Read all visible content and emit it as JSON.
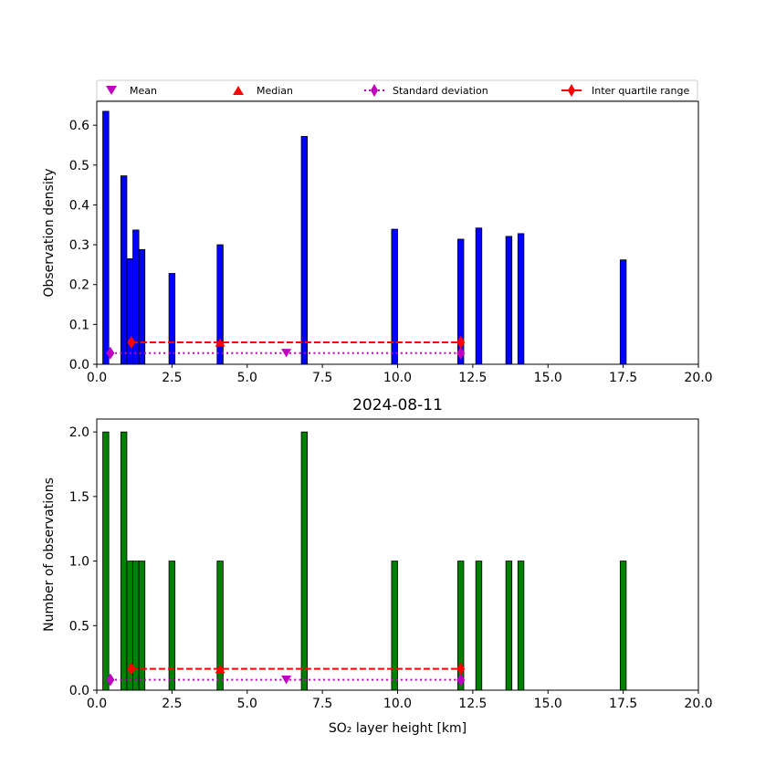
{
  "colors": {
    "top_bars": "#0000ff",
    "bottom_bars": "#008000",
    "mean": "#c000c0",
    "median": "#ff0000",
    "std": "#c000c0",
    "iqr": "#ff0000"
  },
  "legend": {
    "mean": "Mean",
    "median": "Median",
    "std": "Standard deviation",
    "iqr": "Inter quartile range"
  },
  "chart_data": [
    {
      "type": "bar",
      "title": "",
      "xlabel": "",
      "ylabel": "Observation density",
      "xlim": [
        0,
        20
      ],
      "ylim": [
        0,
        0.66
      ],
      "xticks": [
        "0.0",
        "2.5",
        "5.0",
        "7.5",
        "10.0",
        "12.5",
        "15.0",
        "17.5",
        "20.0"
      ],
      "yticks": [
        "0.0",
        "0.1",
        "0.2",
        "0.3",
        "0.4",
        "0.5",
        "0.6"
      ],
      "bins": [
        {
          "x0": 0.2,
          "x1": 0.4,
          "value": 0.635
        },
        {
          "x0": 0.8,
          "x1": 1.0,
          "value": 0.473
        },
        {
          "x0": 1.0,
          "x1": 1.2,
          "value": 0.265
        },
        {
          "x0": 1.2,
          "x1": 1.4,
          "value": 0.337
        },
        {
          "x0": 1.4,
          "x1": 1.6,
          "value": 0.288
        },
        {
          "x0": 2.4,
          "x1": 2.6,
          "value": 0.228
        },
        {
          "x0": 4.0,
          "x1": 4.2,
          "value": 0.3
        },
        {
          "x0": 6.8,
          "x1": 7.0,
          "value": 0.572
        },
        {
          "x0": 9.8,
          "x1": 10.0,
          "value": 0.339
        },
        {
          "x0": 12.0,
          "x1": 12.2,
          "value": 0.314
        },
        {
          "x0": 12.6,
          "x1": 12.8,
          "value": 0.342
        },
        {
          "x0": 13.6,
          "x1": 13.8,
          "value": 0.321
        },
        {
          "x0": 14.0,
          "x1": 14.2,
          "value": 0.328
        },
        {
          "x0": 17.4,
          "x1": 17.6,
          "value": 0.262
        }
      ],
      "stats": {
        "mean": {
          "x": 6.3,
          "y": 0.028
        },
        "median": {
          "x": 4.1,
          "y": 0.055
        },
        "std": {
          "x_range": [
            0.45,
            12.1
          ],
          "y": 0.028
        },
        "iqr": {
          "x_range": [
            1.15,
            12.1
          ],
          "y": 0.055
        }
      }
    },
    {
      "type": "bar",
      "title": "2024-08-11",
      "xlabel": "SO₂ layer height [km]",
      "ylabel": "Number of observations",
      "xlim": [
        0,
        20
      ],
      "ylim": [
        0,
        2.1
      ],
      "xticks": [
        "0.0",
        "2.5",
        "5.0",
        "7.5",
        "10.0",
        "12.5",
        "15.0",
        "17.5",
        "20.0"
      ],
      "yticks": [
        "0.0",
        "0.5",
        "1.0",
        "1.5",
        "2.0"
      ],
      "bins": [
        {
          "x0": 0.2,
          "x1": 0.4,
          "value": 2
        },
        {
          "x0": 0.8,
          "x1": 1.0,
          "value": 2
        },
        {
          "x0": 1.0,
          "x1": 1.2,
          "value": 1
        },
        {
          "x0": 1.2,
          "x1": 1.4,
          "value": 1
        },
        {
          "x0": 1.4,
          "x1": 1.6,
          "value": 1
        },
        {
          "x0": 2.4,
          "x1": 2.6,
          "value": 1
        },
        {
          "x0": 4.0,
          "x1": 4.2,
          "value": 1
        },
        {
          "x0": 6.8,
          "x1": 7.0,
          "value": 2
        },
        {
          "x0": 9.8,
          "x1": 10.0,
          "value": 1
        },
        {
          "x0": 12.0,
          "x1": 12.2,
          "value": 1
        },
        {
          "x0": 12.6,
          "x1": 12.8,
          "value": 1
        },
        {
          "x0": 13.6,
          "x1": 13.8,
          "value": 1
        },
        {
          "x0": 14.0,
          "x1": 14.2,
          "value": 1
        },
        {
          "x0": 17.4,
          "x1": 17.6,
          "value": 1
        }
      ],
      "stats": {
        "mean": {
          "x": 6.3,
          "y": 0.08
        },
        "median": {
          "x": 4.1,
          "y": 0.165
        },
        "std": {
          "x_range": [
            0.45,
            12.1
          ],
          "y": 0.08
        },
        "iqr": {
          "x_range": [
            1.15,
            12.1
          ],
          "y": 0.165
        }
      }
    }
  ]
}
